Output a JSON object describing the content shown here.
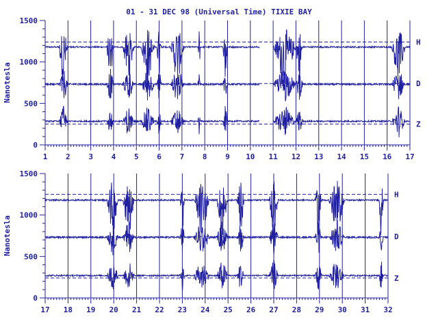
{
  "chart_data": [
    {
      "type": "line",
      "title": "01 - 31 DEC 98 (Universal Time) TIXIE BAY",
      "ylabel": "Nanotesla",
      "xlabel": "",
      "xlim": [
        1,
        17
      ],
      "ylim": [
        0,
        1500
      ],
      "x_ticks": [
        "1",
        "2",
        "3",
        "4",
        "5",
        "6",
        "7",
        "8",
        "9",
        "10",
        "11",
        "12",
        "13",
        "14",
        "15",
        "16",
        "17"
      ],
      "y_ticks": [
        "0",
        "500",
        "1000",
        "1500"
      ],
      "baselines": [
        {
          "name": "H",
          "value": 1240
        },
        {
          "name": "D",
          "value": 740
        },
        {
          "name": "Z",
          "value": 250
        }
      ],
      "series": [
        {
          "name": "H",
          "base": 1180,
          "color": "#1f1f9f"
        },
        {
          "name": "D",
          "base": 730,
          "color": "#1f1f9f"
        },
        {
          "name": "Z",
          "base": 285,
          "color": "#1f1f9f"
        }
      ],
      "gap": [
        10.4,
        11.0
      ],
      "disturbed_days": [
        [
          1.6,
          2.0
        ],
        [
          3.7,
          4.0
        ],
        [
          4.4,
          4.9
        ],
        [
          5.2,
          5.8
        ],
        [
          5.9,
          6.1
        ],
        [
          6.5,
          7.1
        ],
        [
          7.7,
          7.8
        ],
        [
          8.8,
          9.0
        ],
        [
          11.0,
          12.0
        ],
        [
          12.0,
          12.3
        ],
        [
          16.2,
          16.8
        ]
      ],
      "grid": "vertical-days",
      "legend": "right"
    },
    {
      "type": "line",
      "title": "",
      "ylabel": "Nanotesla",
      "xlabel": "",
      "xlim": [
        17,
        32
      ],
      "ylim": [
        0,
        1500
      ],
      "x_ticks": [
        "17",
        "18",
        "19",
        "20",
        "21",
        "22",
        "23",
        "24",
        "25",
        "26",
        "27",
        "28",
        "29",
        "30",
        "31",
        "32"
      ],
      "y_ticks": [
        "0",
        "500",
        "1000",
        "1500"
      ],
      "baselines": [
        {
          "name": "H",
          "value": 1250
        },
        {
          "name": "D",
          "value": 740
        },
        {
          "name": "Z",
          "value": 240
        }
      ],
      "series": [
        {
          "name": "H",
          "base": 1180,
          "color": "#1f1f9f"
        },
        {
          "name": "D",
          "base": 730,
          "color": "#1f1f9f"
        },
        {
          "name": "Z",
          "base": 270,
          "color": "#1f1f9f"
        }
      ],
      "gap": null,
      "disturbed_days": [
        [
          19.7,
          20.2
        ],
        [
          20.4,
          20.9
        ],
        [
          22.9,
          23.1
        ],
        [
          23.5,
          24.2
        ],
        [
          24.5,
          25.0
        ],
        [
          25.4,
          25.7
        ],
        [
          26.8,
          27.2
        ],
        [
          28.8,
          29.1
        ],
        [
          29.4,
          30.1
        ],
        [
          31.6,
          31.8
        ]
      ],
      "grid": "vertical-days",
      "legend": "right"
    }
  ]
}
